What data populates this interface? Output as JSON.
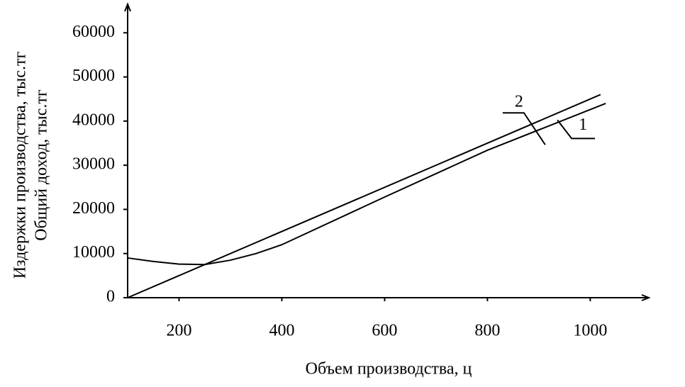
{
  "chart_data": {
    "type": "line",
    "x_label": "Объем производства, ц",
    "y_label": [
      "Издержки производства, тыс.тг",
      "Общий доход, тыс.тг"
    ],
    "xlim": [
      100,
      1114
    ],
    "xticks": [
      200,
      400,
      600,
      800,
      1000
    ],
    "ylim": [
      0,
      65500
    ],
    "yticks": [
      0,
      10000,
      20000,
      30000,
      40000,
      50000,
      60000
    ],
    "series": [
      {
        "name": "1",
        "color": "#000000",
        "x": [
          100,
          150,
          200,
          250,
          300,
          350,
          400,
          600,
          800,
          1030
        ],
        "values": [
          9000,
          8200,
          7600,
          7500,
          8500,
          10000,
          12000,
          22800,
          33400,
          44000
        ]
      },
      {
        "name": "2",
        "color": "#000000",
        "x": [
          100,
          1020
        ],
        "values": [
          0,
          46000
        ]
      }
    ]
  }
}
